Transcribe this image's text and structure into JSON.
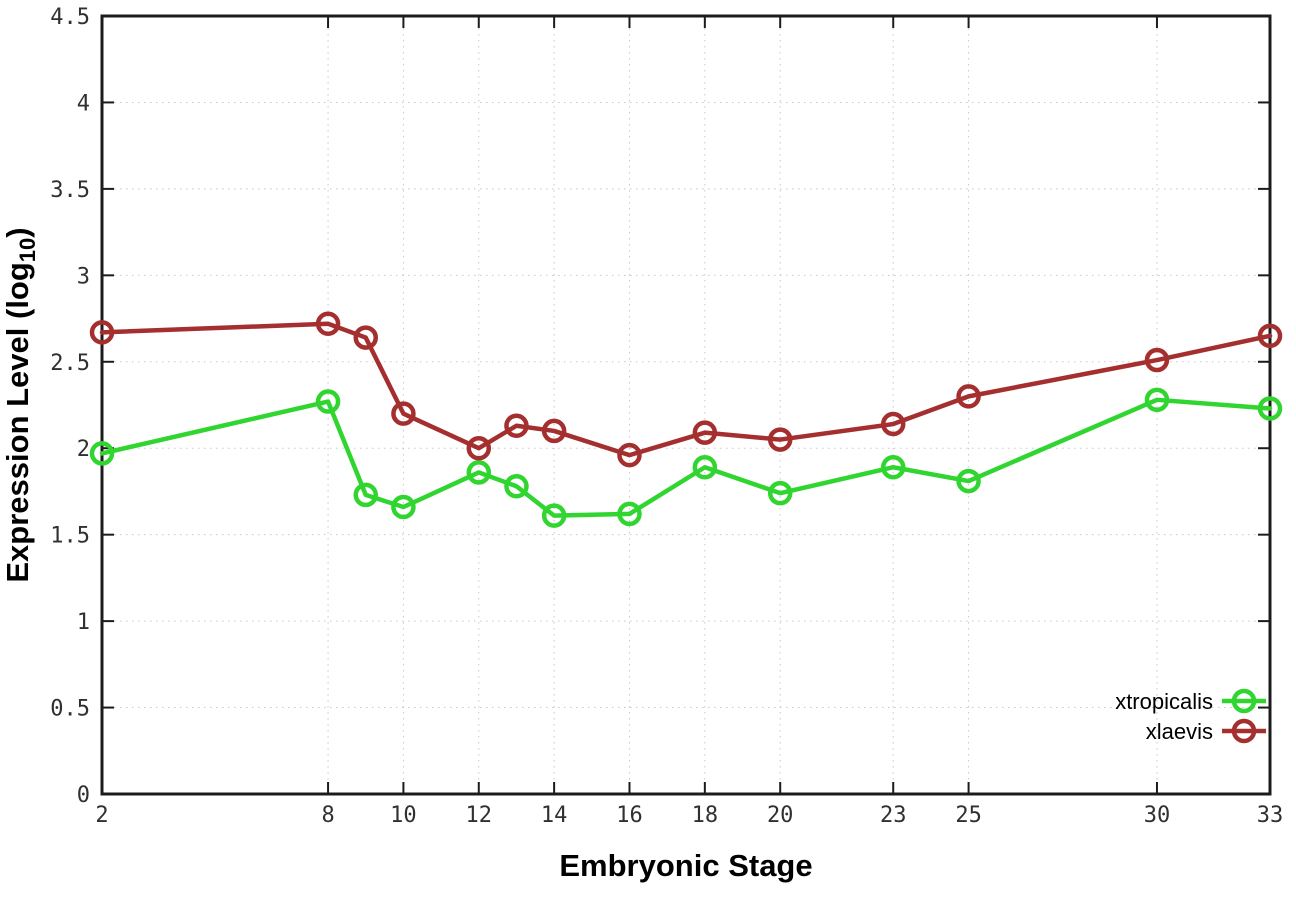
{
  "chart_data": {
    "type": "line",
    "title": "",
    "xlabel": "Embryonic Stage",
    "ylabel": "Expression Level (log10)",
    "ylabel_prefix": "Expression Level (log",
    "ylabel_sub": "10",
    "ylabel_suffix": ")",
    "xlim": [
      2,
      33
    ],
    "ylim": [
      0,
      4.5
    ],
    "xticks": [
      2,
      8,
      10,
      12,
      14,
      16,
      18,
      20,
      23,
      25,
      30,
      33
    ],
    "yticks": [
      0,
      0.5,
      1,
      1.5,
      2,
      2.5,
      3,
      3.5,
      4,
      4.5
    ],
    "grid": true,
    "legend_position": "inside-bottom-right",
    "x": [
      2,
      8,
      9,
      10,
      12,
      13,
      14,
      16,
      18,
      20,
      23,
      25,
      30,
      33
    ],
    "series": [
      {
        "name": "xtropicalis",
        "color": "#30d530",
        "marker": "open-circle",
        "values": [
          1.97,
          2.27,
          1.73,
          1.66,
          1.86,
          1.78,
          1.61,
          1.62,
          1.89,
          1.74,
          1.89,
          1.81,
          2.28,
          2.23
        ]
      },
      {
        "name": "xlaevis",
        "color": "#a52f2f",
        "marker": "open-circle",
        "values": [
          2.67,
          2.72,
          2.64,
          2.2,
          2.0,
          2.13,
          2.1,
          1.96,
          2.09,
          2.05,
          2.14,
          2.3,
          2.51,
          2.65
        ]
      }
    ],
    "style": {
      "border_color": "#1c1c1c",
      "grid_color": "#c8c8c8",
      "tick_label_color": "#303030",
      "line_width": 4.5,
      "marker_radius": 10,
      "marker_stroke": 4.5
    }
  }
}
